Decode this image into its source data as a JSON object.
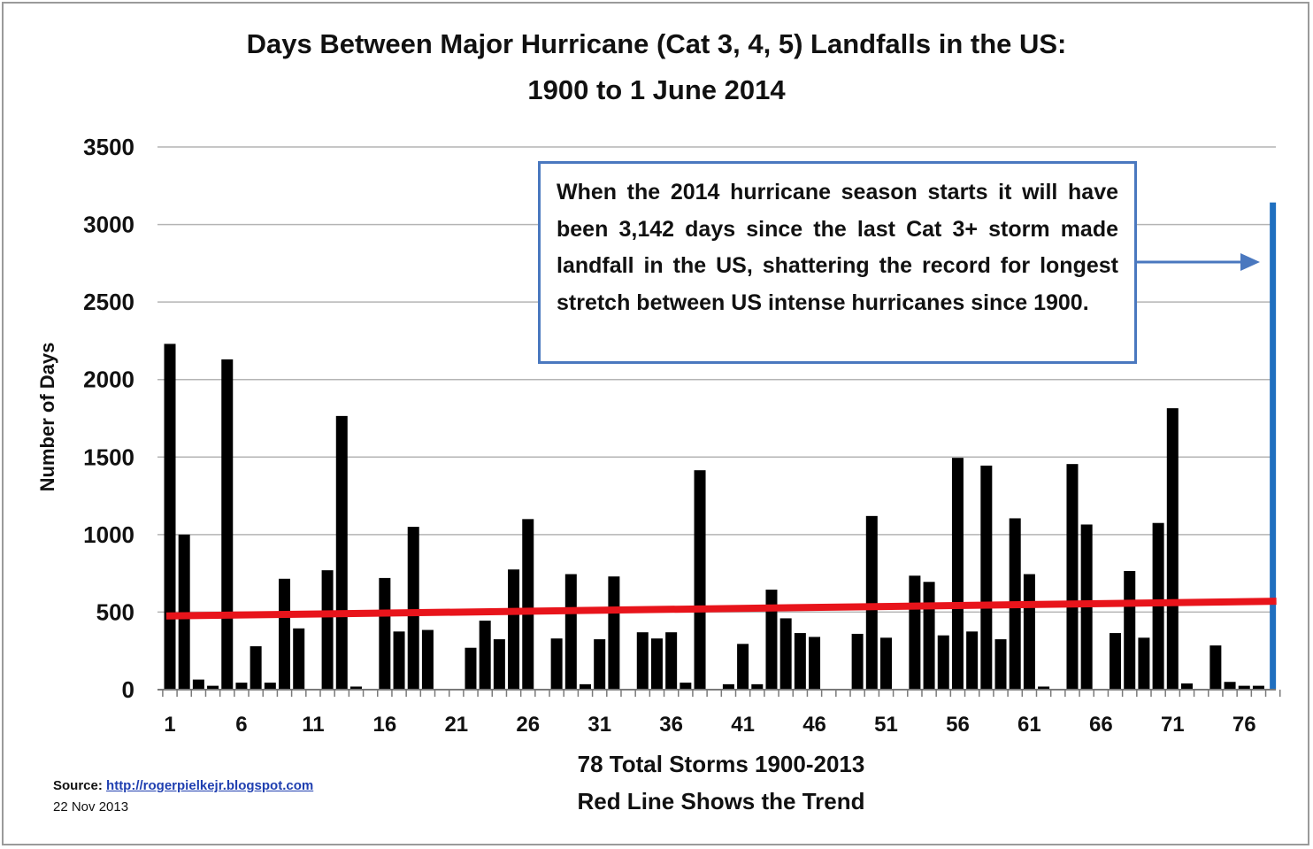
{
  "chart_data": {
    "type": "bar",
    "title": "Days Between Major Hurricane (Cat 3, 4, 5) Landfalls in the US:",
    "subtitle": "1900 to 1 June 2014",
    "ylabel": "Number of Days",
    "xlabel": "78 Total Storms 1900-2013",
    "xlabel_line2": "Red Line Shows the Trend",
    "ylim": [
      0,
      3500
    ],
    "yticks": [
      0,
      500,
      1000,
      1500,
      2000,
      2500,
      3000,
      3500
    ],
    "xtick_labels": [
      "1",
      "6",
      "11",
      "16",
      "21",
      "26",
      "31",
      "36",
      "41",
      "46",
      "51",
      "56",
      "61",
      "66",
      "71",
      "76"
    ],
    "grid": true,
    "values": [
      2230,
      1000,
      65,
      25,
      2130,
      45,
      280,
      45,
      715,
      395,
      5,
      770,
      1765,
      20,
      5,
      720,
      375,
      1050,
      385,
      5,
      5,
      270,
      445,
      325,
      775,
      1100,
      5,
      330,
      745,
      35,
      325,
      730,
      5,
      370,
      330,
      370,
      45,
      1415,
      5,
      35,
      295,
      35,
      645,
      460,
      365,
      340,
      5,
      5,
      360,
      1120,
      335,
      5,
      735,
      695,
      350,
      1495,
      375,
      1445,
      325,
      1105,
      745,
      20,
      5,
      1455,
      1065,
      5,
      365,
      765,
      335,
      1075,
      1815,
      40,
      5,
      285,
      50,
      25,
      25,
      3142
    ],
    "bar_color": "#000000",
    "highlight_bar_color": "#1f6fbf",
    "trend": {
      "start": 475,
      "end": 570,
      "color": "#e8141b"
    },
    "gridline_color": "#b4b4b4"
  },
  "annotation": {
    "text": "When the 2014 hurricane season starts it will have been 3,142 days since the  last Cat 3+ storm made landfall in the US, shattering the record for longest stretch between US intense hurricanes since 1900.",
    "border_color": "#4a78bf",
    "arrow_color": "#4a78bf"
  },
  "source": {
    "label": "Source:",
    "url_text": "http://rogerpielkejr.blogspot.com",
    "date": "22 Nov 2013"
  }
}
